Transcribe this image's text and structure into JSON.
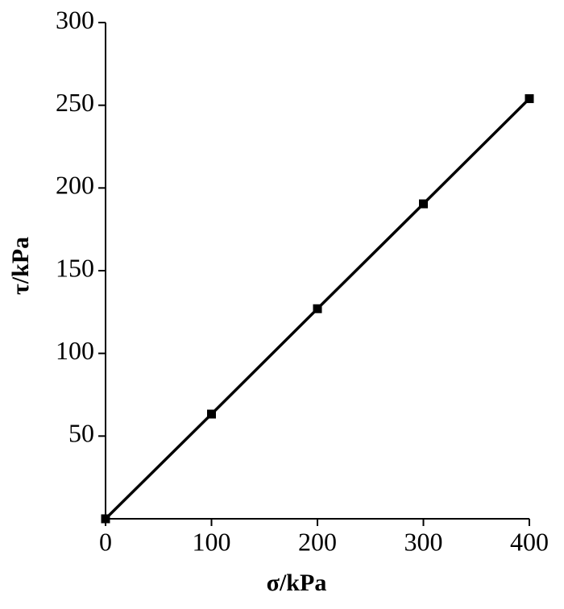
{
  "chart_data": {
    "type": "line",
    "x": [
      0,
      100,
      200,
      300,
      400
    ],
    "values": [
      0,
      63.3,
      127,
      190.4,
      254
    ],
    "color": "#000000",
    "marker": "square",
    "xlim": [
      0,
      400
    ],
    "xticks": [
      0,
      100,
      200,
      300,
      400
    ],
    "ylim": [
      0,
      300
    ],
    "yticks": [
      50,
      100,
      150,
      200,
      250,
      300
    ],
    "xlabel": "σ/kPa",
    "ylabel": "τ/kPa",
    "grid": false
  }
}
